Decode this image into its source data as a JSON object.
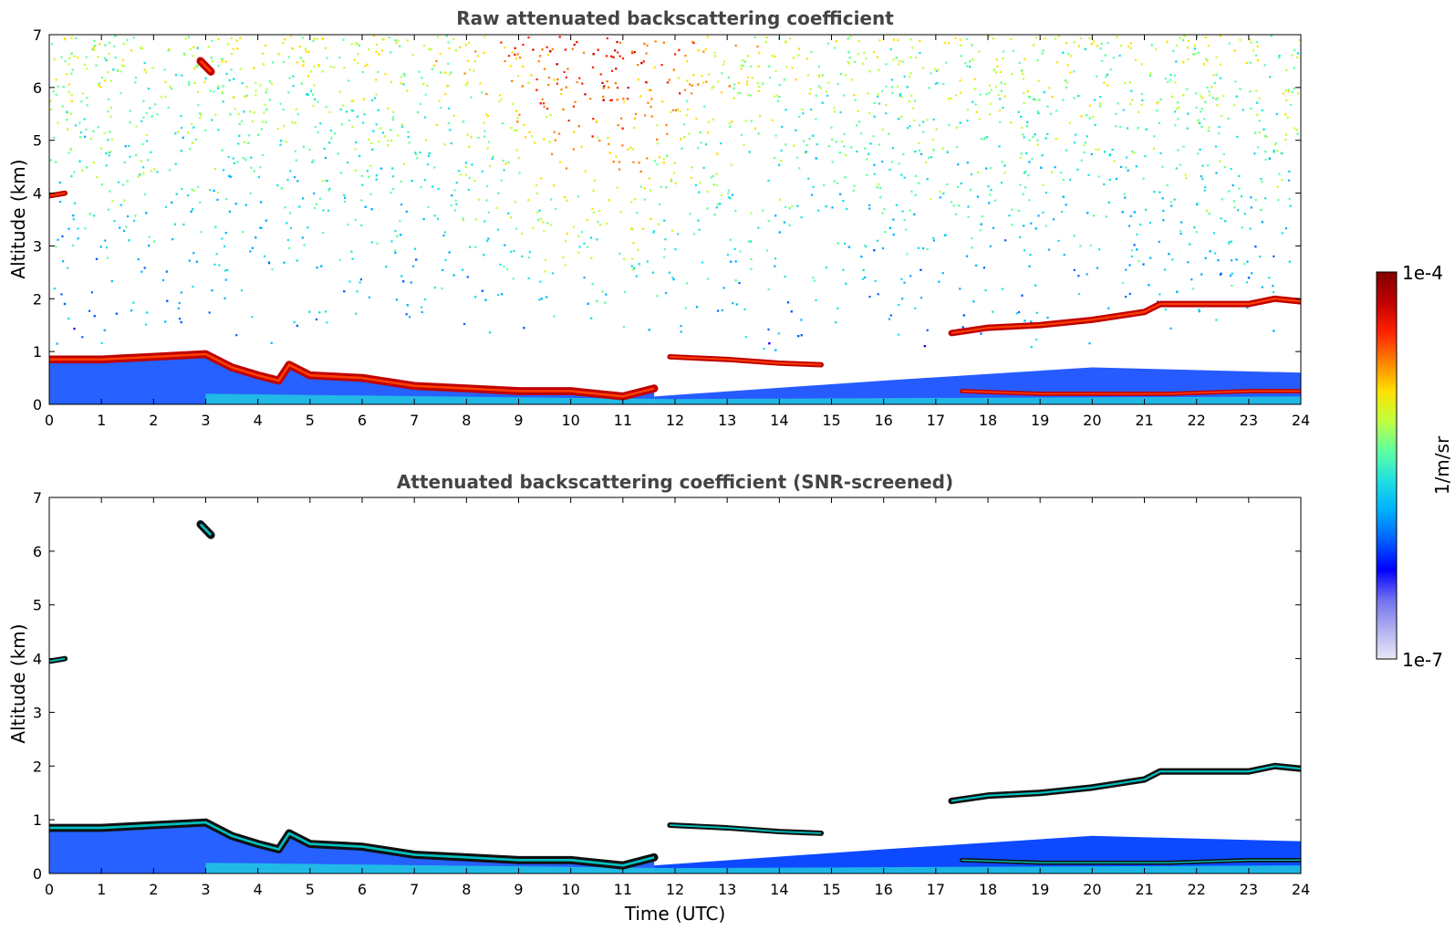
{
  "chart_data": [
    {
      "type": "heatmap",
      "title": "Raw attenuated backscattering coefficient",
      "xlabel": "",
      "ylabel": "Altitude (km)",
      "xlim": [
        0,
        24
      ],
      "ylim": [
        0,
        7
      ],
      "x_ticks": [
        "0",
        "1",
        "2",
        "3",
        "4",
        "5",
        "6",
        "7",
        "8",
        "9",
        "10",
        "11",
        "12",
        "13",
        "14",
        "15",
        "16",
        "17",
        "18",
        "19",
        "20",
        "21",
        "22",
        "23",
        "24"
      ],
      "y_ticks": [
        "0",
        "1",
        "2",
        "3",
        "4",
        "5",
        "6",
        "7"
      ],
      "noise": true,
      "layers": [
        {
          "name": "boundary-layer-top",
          "points": [
            [
              0,
              0.85
            ],
            [
              1,
              0.85
            ],
            [
              2,
              0.9
            ],
            [
              3,
              0.95
            ],
            [
              3.5,
              0.7
            ],
            [
              4,
              0.55
            ],
            [
              4.4,
              0.45
            ],
            [
              4.6,
              0.75
            ],
            [
              5,
              0.55
            ],
            [
              6,
              0.5
            ],
            [
              7,
              0.35
            ],
            [
              8,
              0.3
            ],
            [
              9,
              0.25
            ],
            [
              10,
              0.25
            ],
            [
              11,
              0.15
            ],
            [
              11.6,
              0.3
            ]
          ],
          "thickness": 0.15
        },
        {
          "name": "cloud-12-15",
          "points": [
            [
              11.9,
              0.9
            ],
            [
              13,
              0.85
            ],
            [
              14,
              0.78
            ],
            [
              14.8,
              0.75
            ]
          ],
          "thickness": 0.1
        },
        {
          "name": "cloud-17-24",
          "points": [
            [
              17.3,
              1.35
            ],
            [
              18,
              1.45
            ],
            [
              19,
              1.5
            ],
            [
              20,
              1.6
            ],
            [
              21,
              1.75
            ],
            [
              21.3,
              1.9
            ],
            [
              22,
              1.9
            ],
            [
              23,
              1.9
            ],
            [
              23.5,
              2.0
            ],
            [
              24,
              1.95
            ]
          ],
          "thickness": 0.12
        },
        {
          "name": "low-cloud-18-24",
          "points": [
            [
              17.5,
              0.25
            ],
            [
              19,
              0.2
            ],
            [
              21.5,
              0.2
            ],
            [
              23,
              0.25
            ],
            [
              24,
              0.25
            ]
          ],
          "thickness": 0.08
        },
        {
          "name": "elevated-aerosol",
          "points": [
            [
              0,
              3.95
            ],
            [
              0.3,
              4.0
            ]
          ],
          "thickness": 0.1
        },
        {
          "name": "plume-3h",
          "points": [
            [
              2.9,
              6.5
            ],
            [
              3.1,
              6.3
            ]
          ],
          "thickness": 0.15
        }
      ]
    },
    {
      "type": "heatmap",
      "title": "Attenuated backscattering coefficient (SNR-screened)",
      "xlabel": "Time (UTC)",
      "ylabel": "Altitude (km)",
      "xlim": [
        0,
        24
      ],
      "ylim": [
        0,
        7
      ],
      "x_ticks": [
        "0",
        "1",
        "2",
        "3",
        "4",
        "5",
        "6",
        "7",
        "8",
        "9",
        "10",
        "11",
        "12",
        "13",
        "14",
        "15",
        "16",
        "17",
        "18",
        "19",
        "20",
        "21",
        "22",
        "23",
        "24"
      ],
      "y_ticks": [
        "0",
        "1",
        "2",
        "3",
        "4",
        "5",
        "6",
        "7"
      ],
      "noise": false,
      "layers": [
        {
          "name": "boundary-layer-top",
          "points": [
            [
              0,
              0.85
            ],
            [
              1,
              0.85
            ],
            [
              2,
              0.9
            ],
            [
              3,
              0.95
            ],
            [
              3.5,
              0.7
            ],
            [
              4,
              0.55
            ],
            [
              4.4,
              0.45
            ],
            [
              4.6,
              0.75
            ],
            [
              5,
              0.55
            ],
            [
              6,
              0.5
            ],
            [
              7,
              0.35
            ],
            [
              8,
              0.3
            ],
            [
              9,
              0.25
            ],
            [
              10,
              0.25
            ],
            [
              11,
              0.15
            ],
            [
              11.6,
              0.3
            ]
          ],
          "thickness": 0.15
        },
        {
          "name": "cloud-12-15",
          "points": [
            [
              11.9,
              0.9
            ],
            [
              13,
              0.85
            ],
            [
              14,
              0.78
            ],
            [
              14.8,
              0.75
            ]
          ],
          "thickness": 0.1
        },
        {
          "name": "cloud-17-24",
          "points": [
            [
              17.3,
              1.35
            ],
            [
              18,
              1.45
            ],
            [
              19,
              1.5
            ],
            [
              20,
              1.6
            ],
            [
              21,
              1.75
            ],
            [
              21.3,
              1.9
            ],
            [
              22,
              1.9
            ],
            [
              23,
              1.9
            ],
            [
              23.5,
              2.0
            ],
            [
              24,
              1.95
            ]
          ],
          "thickness": 0.12
        },
        {
          "name": "low-cloud-18-24",
          "points": [
            [
              17.5,
              0.25
            ],
            [
              19,
              0.2
            ],
            [
              21.5,
              0.2
            ],
            [
              23,
              0.25
            ],
            [
              24,
              0.25
            ]
          ],
          "thickness": 0.08
        },
        {
          "name": "elevated-aerosol",
          "points": [
            [
              0,
              3.95
            ],
            [
              0.3,
              4.0
            ]
          ],
          "thickness": 0.1
        },
        {
          "name": "plume-3h",
          "points": [
            [
              2.9,
              6.5
            ],
            [
              3.1,
              6.3
            ]
          ],
          "thickness": 0.15
        }
      ]
    }
  ],
  "colorbar": {
    "label": "1/m/sr",
    "max_label": "1e-4",
    "min_label": "1e-7",
    "colors": [
      "#e8e8f8",
      "#b0b0f0",
      "#7070ee",
      "#0000ff",
      "#0060ff",
      "#00b0ff",
      "#20e0e0",
      "#60ffa0",
      "#c0ff40",
      "#ffe000",
      "#ff8000",
      "#ff2000",
      "#c00000",
      "#800000"
    ]
  }
}
